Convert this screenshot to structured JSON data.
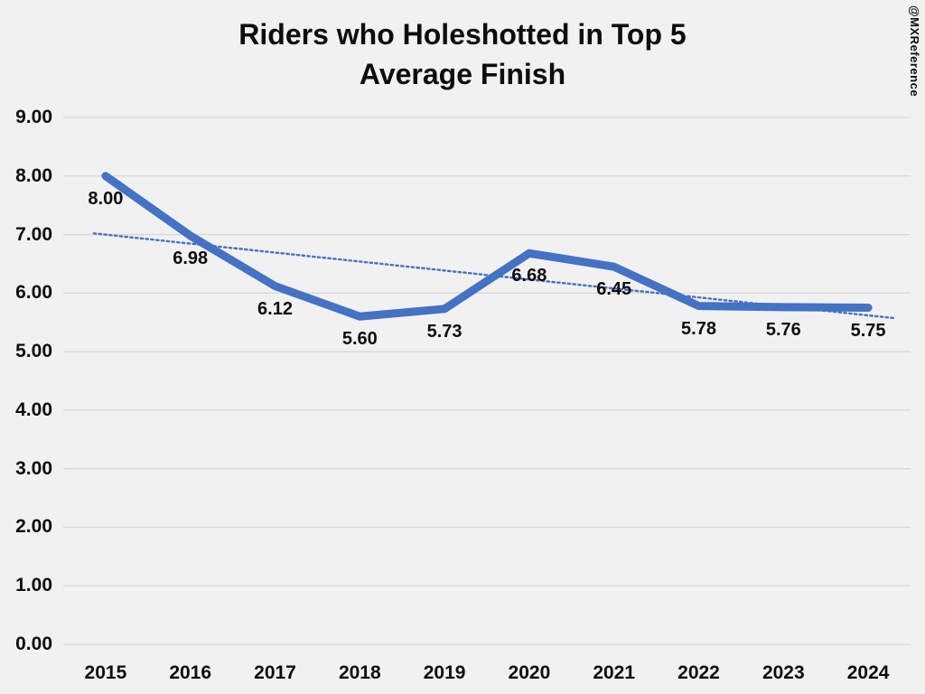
{
  "watermark": "@MXReference",
  "chart_data": {
    "type": "line",
    "title_lines": [
      "Riders who Holeshotted in Top 5",
      "Average Finish"
    ],
    "categories": [
      "2015",
      "2016",
      "2017",
      "2018",
      "2019",
      "2020",
      "2021",
      "2022",
      "2023",
      "2024"
    ],
    "series": [
      {
        "name": "Average Finish",
        "values": [
          8.0,
          6.98,
          6.12,
          5.6,
          5.73,
          6.68,
          6.45,
          5.78,
          5.76,
          5.75
        ]
      }
    ],
    "data_labels": [
      "8.00",
      "6.98",
      "6.12",
      "5.60",
      "5.73",
      "6.68",
      "6.45",
      "5.78",
      "5.76",
      "5.75"
    ],
    "y_tick_labels": [
      "0.00",
      "1.00",
      "2.00",
      "3.00",
      "4.00",
      "5.00",
      "6.00",
      "7.00",
      "8.00",
      "9.00"
    ],
    "ylim": [
      0,
      9
    ],
    "y_step": 1,
    "xlabel": "",
    "ylabel": "",
    "grid": true,
    "legend": "none",
    "trendline": {
      "style": "dotted",
      "start_value": 7.02,
      "end_value": 5.57
    },
    "colors": {
      "line": "#4472C4",
      "trendline": "#4472C4",
      "gridline": "#d8d8d8",
      "background": "#f1f1f1",
      "text": "#0d0d0d"
    }
  }
}
